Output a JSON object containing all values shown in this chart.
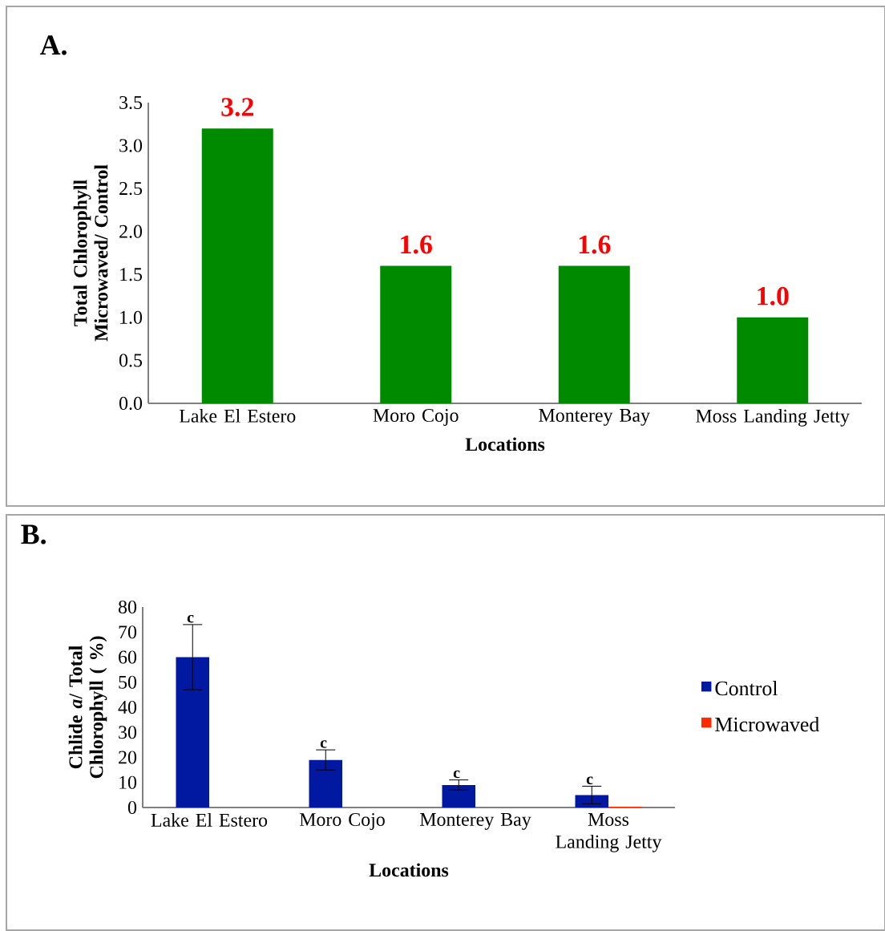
{
  "chart_data": [
    {
      "type": "bar",
      "title": "A.",
      "xlabel": "Locations",
      "ylabel": "Total Chlorophyll Microwaved/ Control",
      "categories": [
        "Lake El Estero",
        "Moro Cojo",
        "Monterey Bay",
        "Moss Landing Jetty"
      ],
      "values": [
        3.2,
        1.6,
        1.6,
        1.0
      ],
      "color": "#008a00",
      "value_labels": [
        "3.2",
        "1.6",
        "1.6",
        "1.0"
      ],
      "ylim": [
        0,
        3.5
      ],
      "yticks": [
        {
          "value": 0,
          "label": "0.0"
        },
        {
          "value": 0.5,
          "label": "0.5"
        },
        {
          "value": 1,
          "label": "1.0"
        },
        {
          "value": 1.5,
          "label": "1.5"
        },
        {
          "value": 2,
          "label": "2.0"
        },
        {
          "value": 2.5,
          "label": "2.5"
        },
        {
          "value": 3,
          "label": "3.0"
        },
        {
          "value": 3.5,
          "label": "3.5"
        }
      ]
    },
    {
      "type": "bar",
      "title": "B.",
      "xlabel": "Locations",
      "ylabel": "Chlide *a*/ Total Chlorophyll ( %)",
      "categories": [
        "Lake El Estero",
        "Moro Cojo",
        "Monterey Bay",
        "Moss Landing Jetty"
      ],
      "series": [
        {
          "name": "Control",
          "color": "#0019a0",
          "values": [
            60,
            19,
            9,
            5
          ],
          "errors": [
            13,
            4,
            2,
            3.5
          ]
        },
        {
          "name": "Microwaved",
          "color": "#ff2a00",
          "values": [
            0,
            0,
            0,
            0.3
          ]
        }
      ],
      "ylim": [
        0,
        80
      ],
      "yticks": [
        0,
        10,
        20,
        30,
        40,
        50,
        60,
        70,
        80
      ],
      "legend": "right",
      "annotations": [
        "c",
        "c",
        "c",
        "c"
      ]
    }
  ]
}
